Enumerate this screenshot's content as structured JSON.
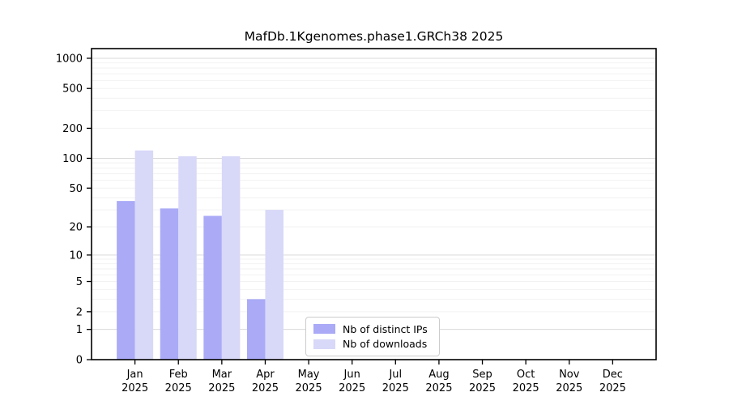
{
  "chart_data": {
    "type": "bar",
    "title": "MafDb.1Kgenomes.phase1.GRCh38 2025",
    "categories": [
      "Jan",
      "Feb",
      "Mar",
      "Apr",
      "May",
      "Jun",
      "Jul",
      "Aug",
      "Sep",
      "Oct",
      "Nov",
      "Dec"
    ],
    "year_label": "2025",
    "series": [
      {
        "name": "Nb of distinct IPs",
        "color": "#aaaaf7",
        "values": [
          37,
          31,
          26,
          3,
          0,
          0,
          0,
          0,
          0,
          0,
          0,
          0
        ]
      },
      {
        "name": "Nb of downloads",
        "color": "#d8d8f8",
        "values": [
          120,
          105,
          105,
          30,
          0,
          0,
          0,
          0,
          0,
          0,
          0,
          0
        ]
      }
    ],
    "xlabel": "",
    "ylabel": "",
    "y_axis": {
      "scale": "log10(1+x)",
      "ticks": [
        0,
        1,
        2,
        5,
        10,
        20,
        50,
        100,
        200,
        500,
        1000
      ],
      "range": [
        0,
        1250
      ],
      "grid": "major horizontal gridlines at 1,10,100,1000 with faint minor decade lines"
    },
    "legend": {
      "position": "inside bottom-center",
      "entries": [
        "Nb of distinct IPs",
        "Nb of downloads"
      ]
    },
    "colors": {
      "axis": "#000000",
      "grid_major": "#d9d9d9",
      "grid_minor": "#f2f2f2",
      "legend_border": "#cccccc"
    }
  }
}
